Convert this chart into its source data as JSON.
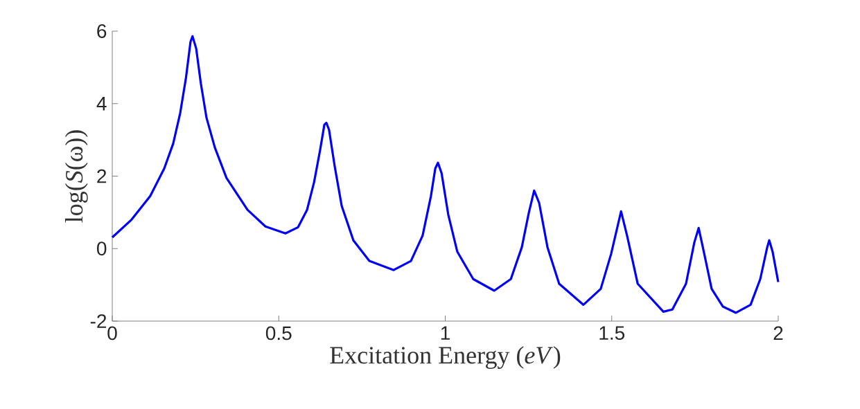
{
  "chart_data": {
    "type": "line",
    "xlabel": "Excitation Energy (*eV*)",
    "ylabel": "log(*S*(ω))",
    "xlim": [
      0,
      2
    ],
    "ylim": [
      -2,
      6
    ],
    "xticks": [
      0,
      0.5,
      1,
      1.5,
      2
    ],
    "yticks": [
      -2,
      0,
      2,
      4,
      6
    ],
    "series": [
      {
        "color": "#0000ff",
        "x": [
          0,
          0.058,
          0.114,
          0.156,
          0.183,
          0.204,
          0.221,
          0.235,
          0.241,
          0.252,
          0.266,
          0.283,
          0.308,
          0.343,
          0.406,
          0.46,
          0.52,
          0.558,
          0.585,
          0.606,
          0.624,
          0.637,
          0.643,
          0.651,
          0.668,
          0.689,
          0.724,
          0.772,
          0.845,
          0.897,
          0.932,
          0.957,
          0.97,
          0.978,
          0.989,
          1.009,
          1.036,
          1.084,
          1.147,
          1.197,
          1.23,
          1.251,
          1.267,
          1.282,
          1.307,
          1.342,
          1.415,
          1.467,
          1.498,
          1.528,
          1.546,
          1.578,
          1.655,
          1.682,
          1.723,
          1.748,
          1.761,
          1.775,
          1.8,
          1.834,
          1.873,
          1.917,
          1.946,
          1.967,
          1.973,
          1.983,
          2.0
        ],
        "values": [
          0.31,
          0.8,
          1.45,
          2.21,
          2.9,
          3.74,
          4.69,
          5.71,
          5.86,
          5.52,
          4.56,
          3.61,
          2.79,
          1.95,
          1.07,
          0.61,
          0.42,
          0.59,
          1.07,
          1.83,
          2.71,
          3.42,
          3.47,
          3.28,
          2.27,
          1.18,
          0.23,
          -0.34,
          -0.59,
          -0.34,
          0.36,
          1.45,
          2.21,
          2.37,
          2.08,
          0.94,
          -0.08,
          -0.84,
          -1.16,
          -0.84,
          0.04,
          0.99,
          1.6,
          1.26,
          0.04,
          -0.97,
          -1.55,
          -1.11,
          -0.15,
          1.03,
          0.36,
          -0.97,
          -1.74,
          -1.68,
          -0.97,
          0.17,
          0.57,
          -0.02,
          -1.11,
          -1.6,
          -1.77,
          -1.55,
          -0.84,
          0.04,
          0.23,
          -0.08,
          -0.92
        ]
      }
    ]
  }
}
